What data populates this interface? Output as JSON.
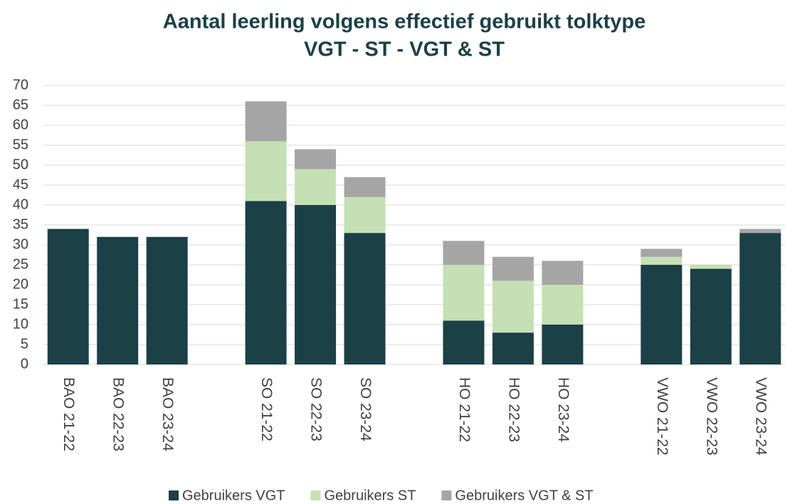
{
  "chart_data": {
    "type": "stacked_bar",
    "title": "Aantal leerling volgens effectief gebruikt tolktype",
    "subtitle": "VGT - ST - VGT & ST",
    "categories": [
      "BAO 21-22",
      "BAO 22-23",
      "BAO 23-24",
      null,
      "SO 21-22",
      "SO 22-23",
      "SO 23-24",
      null,
      "HO 21-22",
      "HO 22-23",
      "HO 23-24",
      null,
      "VWO 21-22",
      "VWO 22-23",
      "VWO 23-24"
    ],
    "series": [
      {
        "name": "Gebruikers VGT",
        "color": "#1b4046",
        "values": [
          34,
          32,
          32,
          null,
          41,
          40,
          33,
          null,
          11,
          8,
          10,
          null,
          25,
          24,
          33
        ]
      },
      {
        "name": "Gebruikers ST",
        "color": "#c5e0b4",
        "values": [
          0,
          0,
          0,
          null,
          15,
          9,
          9,
          null,
          14,
          13,
          10,
          null,
          2,
          1,
          0
        ]
      },
      {
        "name": "Gebruikers VGT & ST",
        "color": "#a5a5a5",
        "values": [
          0,
          0,
          0,
          null,
          10,
          5,
          5,
          null,
          6,
          6,
          6,
          null,
          2,
          0,
          1
        ]
      }
    ],
    "ylim": [
      0,
      70
    ],
    "yticks": [
      0,
      5,
      10,
      15,
      20,
      25,
      30,
      35,
      40,
      45,
      50,
      55,
      60,
      65,
      70
    ],
    "grid": true,
    "legend": "bottom"
  }
}
